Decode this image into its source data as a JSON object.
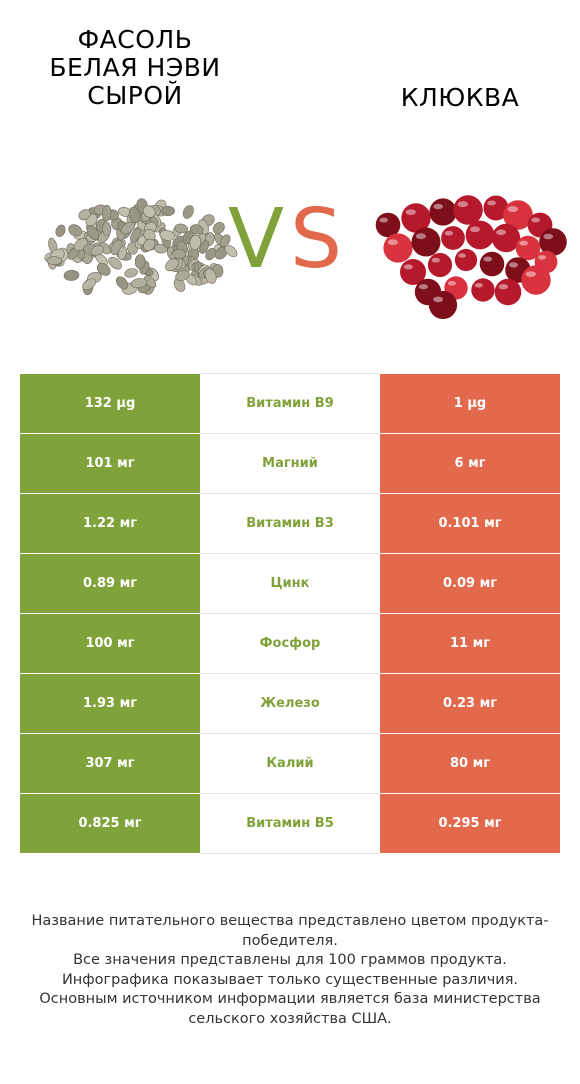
{
  "header": {
    "left_title": "Фасоль\nбелая нэви\nсырой",
    "right_title": "Клюква",
    "vs_v": "V",
    "vs_s": "S"
  },
  "colors": {
    "left_winner": "#7fa33a",
    "right_winner": "#e2694c"
  },
  "rows": [
    {
      "nutrient": "Витамин B9",
      "left": "132 µg",
      "right": "1 µg",
      "winner": "left"
    },
    {
      "nutrient": "Магний",
      "left": "101 мг",
      "right": "6 мг",
      "winner": "left"
    },
    {
      "nutrient": "Витамин B3",
      "left": "1.22 мг",
      "right": "0.101 мг",
      "winner": "left"
    },
    {
      "nutrient": "Цинк",
      "left": "0.89 мг",
      "right": "0.09 мг",
      "winner": "left"
    },
    {
      "nutrient": "Фосфор",
      "left": "100 мг",
      "right": "11 мг",
      "winner": "left"
    },
    {
      "nutrient": "Железо",
      "left": "1.93 мг",
      "right": "0.23 мг",
      "winner": "left"
    },
    {
      "nutrient": "Калий",
      "left": "307 мг",
      "right": "80 мг",
      "winner": "left"
    },
    {
      "nutrient": "Витамин B5",
      "left": "0.825 мг",
      "right": "0.295 мг",
      "winner": "left"
    }
  ],
  "footer": {
    "line1": "Название питательного вещества представлено цветом продукта-победителя.",
    "line2": "Все значения представлены для 100 граммов продукта.",
    "line3": "Инфографика показывает только существенные различия.",
    "line4": "Основным источником информации является база министерства сельского хозяйства США."
  }
}
